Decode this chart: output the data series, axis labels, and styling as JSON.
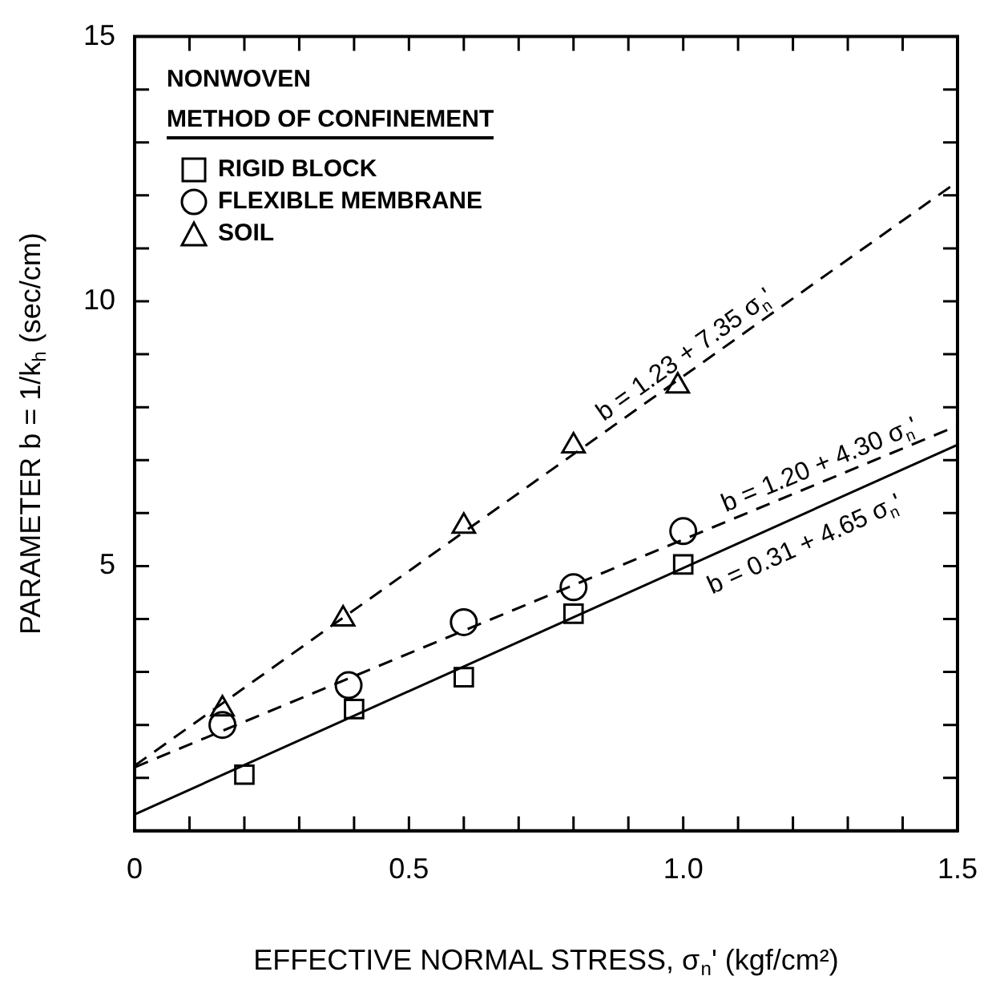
{
  "chart_data": {
    "type": "scatter",
    "title": "NONWOVEN",
    "legend_title": "METHOD OF CONFINEMENT",
    "xlabel": "EFFECTIVE NORMAL STRESS, σ$_{n}$' (kgf/cm²)",
    "ylabel": "PARAMETER b = 1/k$_{h}$ (sec/cm)",
    "xlim": [
      0,
      1.5
    ],
    "ylim": [
      0,
      15
    ],
    "xticks": [
      0,
      {
        "value": 0.1,
        "label": null
      },
      {
        "value": 0.2,
        "label": null
      },
      {
        "value": 0.3,
        "label": null
      },
      {
        "value": 0.4,
        "label": null
      },
      0.5,
      {
        "value": 0.6,
        "label": null
      },
      {
        "value": 0.7,
        "label": null
      },
      {
        "value": 0.8,
        "label": null
      },
      {
        "value": 0.9,
        "label": null
      },
      {
        "value": 1,
        "label": "1.0"
      },
      {
        "value": 1.1,
        "label": null
      },
      {
        "value": 1.2,
        "label": null
      },
      {
        "value": 1.3,
        "label": null
      },
      {
        "value": 1.4,
        "label": null
      },
      1.5
    ],
    "yticks": [
      {
        "value": 0,
        "label": null
      },
      {
        "value": 1,
        "label": null
      },
      {
        "value": 2,
        "label": null
      },
      {
        "value": 3,
        "label": null
      },
      {
        "value": 4,
        "label": null
      },
      5,
      {
        "value": 6,
        "label": null
      },
      {
        "value": 7,
        "label": null
      },
      {
        "value": 8,
        "label": null
      },
      {
        "value": 9,
        "label": null
      },
      10,
      {
        "value": 11,
        "label": null
      },
      {
        "value": 12,
        "label": null
      },
      {
        "value": 13,
        "label": null
      },
      {
        "value": 14,
        "label": null
      },
      15
    ],
    "grid": false,
    "legend": "top left",
    "series": [
      {
        "name": "RIGID BLOCK",
        "marker": "square",
        "color": "#000000",
        "x": [
          0.2,
          0.4,
          0.6,
          0.8,
          1.0
        ],
        "values": [
          1.06,
          2.3,
          2.9,
          4.1,
          5.03
        ]
      },
      {
        "name": "FLEXIBLE MEMBRANE",
        "marker": "circle",
        "color": "#000000",
        "x": [
          0.16,
          0.39,
          0.6,
          0.8,
          1.0
        ],
        "values": [
          2.0,
          2.75,
          3.94,
          4.6,
          5.66
        ]
      },
      {
        "name": "SOIL",
        "marker": "triangle",
        "color": "#000000",
        "x": [
          0.16,
          0.38,
          0.6,
          0.8,
          0.99
        ],
        "values": [
          2.3,
          4.0,
          5.75,
          7.27,
          8.4
        ]
      },
      {
        "name": "b = 0.31 + 4.65 σ$_{n}$'",
        "type": "line",
        "line_style": "solid",
        "color": "#000000",
        "x": [
          0,
          1.5
        ],
        "values": [
          0.31,
          7.29
        ]
      },
      {
        "name": "b = 1.20 + 4.30 σ$_{n}$'",
        "type": "line",
        "line_style": "dashed",
        "color": "#000000",
        "x": [
          0,
          1.5
        ],
        "values": [
          1.2,
          7.65
        ]
      },
      {
        "name": "b = 1.23 + 7.35 σ$_{n}$'",
        "type": "line",
        "line_style": "dashed",
        "color": "#000000",
        "x": [
          0,
          1.5
        ],
        "values": [
          1.23,
          12.26
        ]
      }
    ]
  }
}
